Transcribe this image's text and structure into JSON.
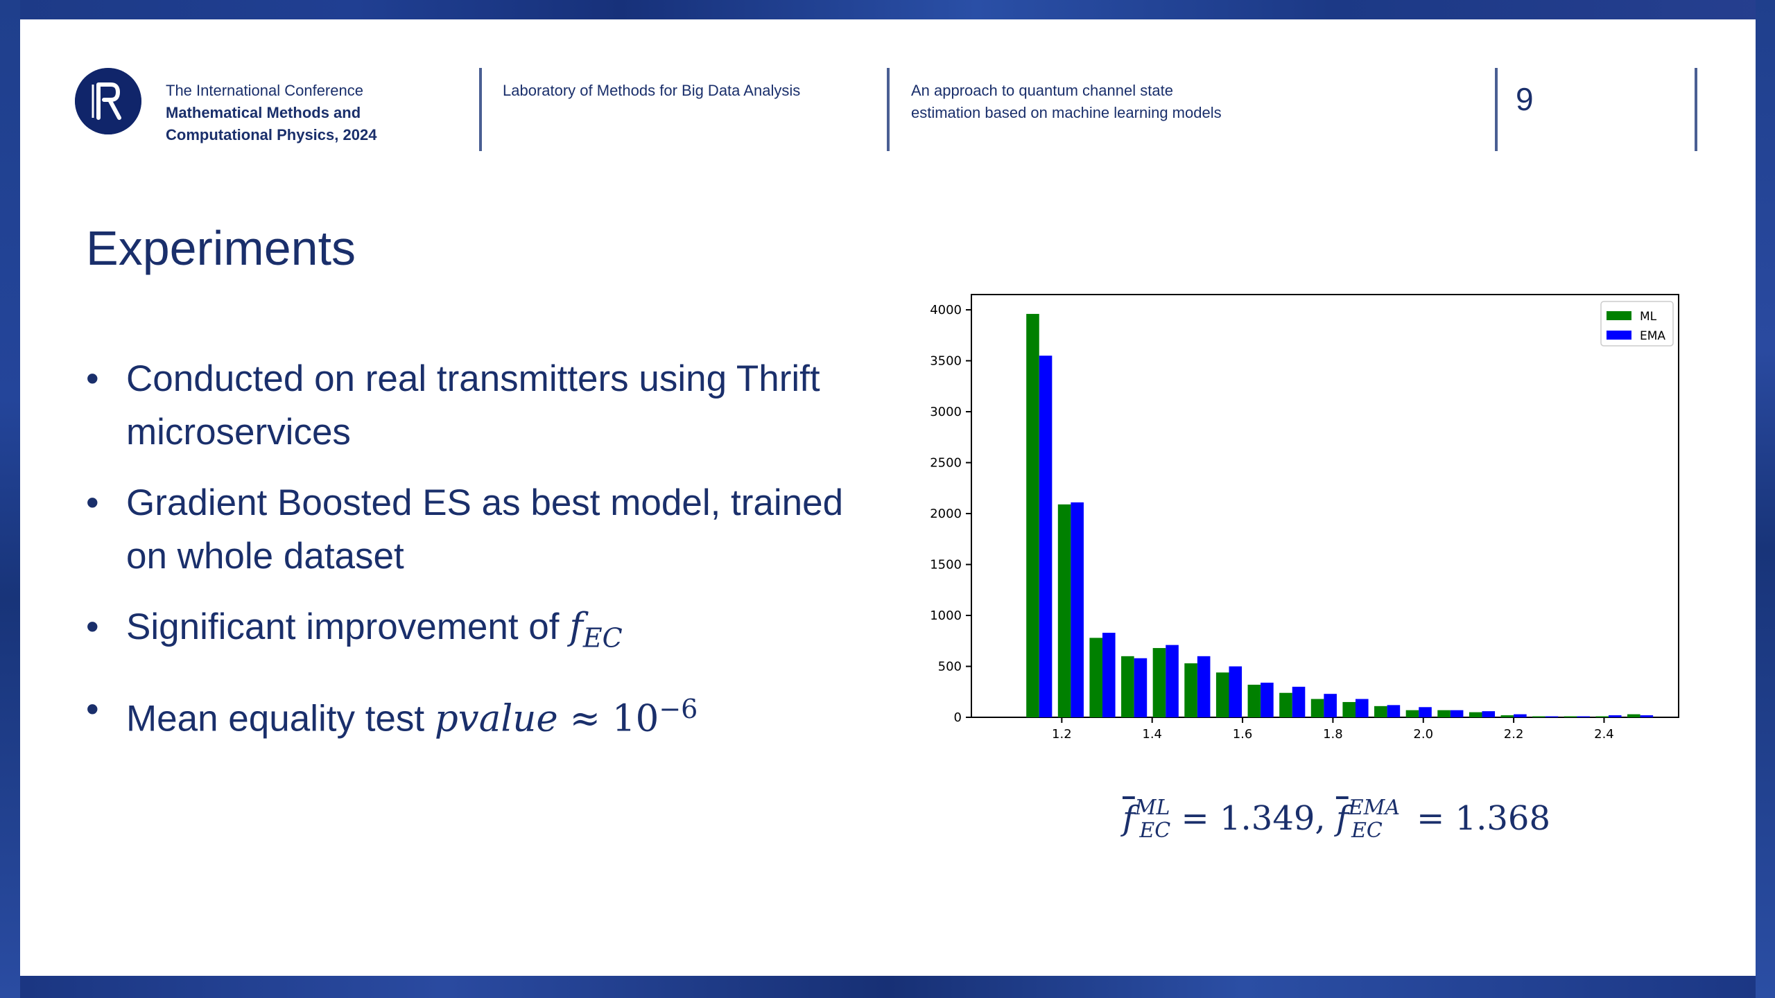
{
  "header": {
    "conference_line1": "The International Conference",
    "conference_line2": "Mathematical Methods and",
    "conference_line3": "Computational Physics, 2024",
    "laboratory": "Laboratory of Methods for Big Data Analysis",
    "topic": "An approach to quantum channel state estimation based on machine learning models",
    "page_number": "9"
  },
  "slide": {
    "title": "Experiments",
    "bullets": [
      {
        "text": "Conducted on real transmitters using Thrift microservices"
      },
      {
        "text": "Gradient Boosted ES as best model, trained on whole dataset"
      },
      {
        "text": "Significant improvement of ",
        "math": "f",
        "sub": "EC"
      },
      {
        "text": "Mean equality test ",
        "math": "pvalue",
        "approx": " ≈ 10",
        "sup": "−6"
      }
    ]
  },
  "formula": {
    "f": "f",
    "sub": "EC",
    "sup_ml": "ML",
    "value_ml": " = 1.349, ",
    "sup_ema": "EMA",
    "value_ema": " = 1.368"
  },
  "colors": {
    "navy": "#1a2f6b",
    "ml": "#008000",
    "ema": "#0000ff"
  },
  "chart_data": {
    "type": "bar",
    "x": [
      1.15,
      1.22,
      1.29,
      1.36,
      1.43,
      1.5,
      1.57,
      1.64,
      1.71,
      1.78,
      1.85,
      1.92,
      1.99,
      2.06,
      2.13,
      2.2,
      2.27,
      2.34,
      2.41,
      2.48
    ],
    "series": [
      {
        "name": "ML",
        "color": "#008000",
        "values": [
          3960,
          2090,
          780,
          600,
          680,
          530,
          440,
          320,
          240,
          180,
          150,
          110,
          70,
          70,
          50,
          20,
          10,
          10,
          10,
          30
        ]
      },
      {
        "name": "EMA",
        "color": "#0000ff",
        "values": [
          3550,
          2110,
          830,
          580,
          710,
          600,
          500,
          340,
          300,
          230,
          180,
          120,
          100,
          70,
          60,
          30,
          10,
          10,
          20,
          20
        ]
      }
    ],
    "xticks": [
      "1.2",
      "1.4",
      "1.6",
      "1.8",
      "2.0",
      "2.2",
      "2.4"
    ],
    "xtick_values": [
      1.2,
      1.4,
      1.6,
      1.8,
      2.0,
      2.2,
      2.4
    ],
    "yticks": [
      "0",
      "500",
      "1000",
      "1500",
      "2000",
      "2500",
      "3000",
      "3500",
      "4000"
    ],
    "ylim": [
      0,
      4150
    ],
    "xlim": [
      1.0,
      2.565
    ],
    "legend": "top-right",
    "grid": false
  }
}
